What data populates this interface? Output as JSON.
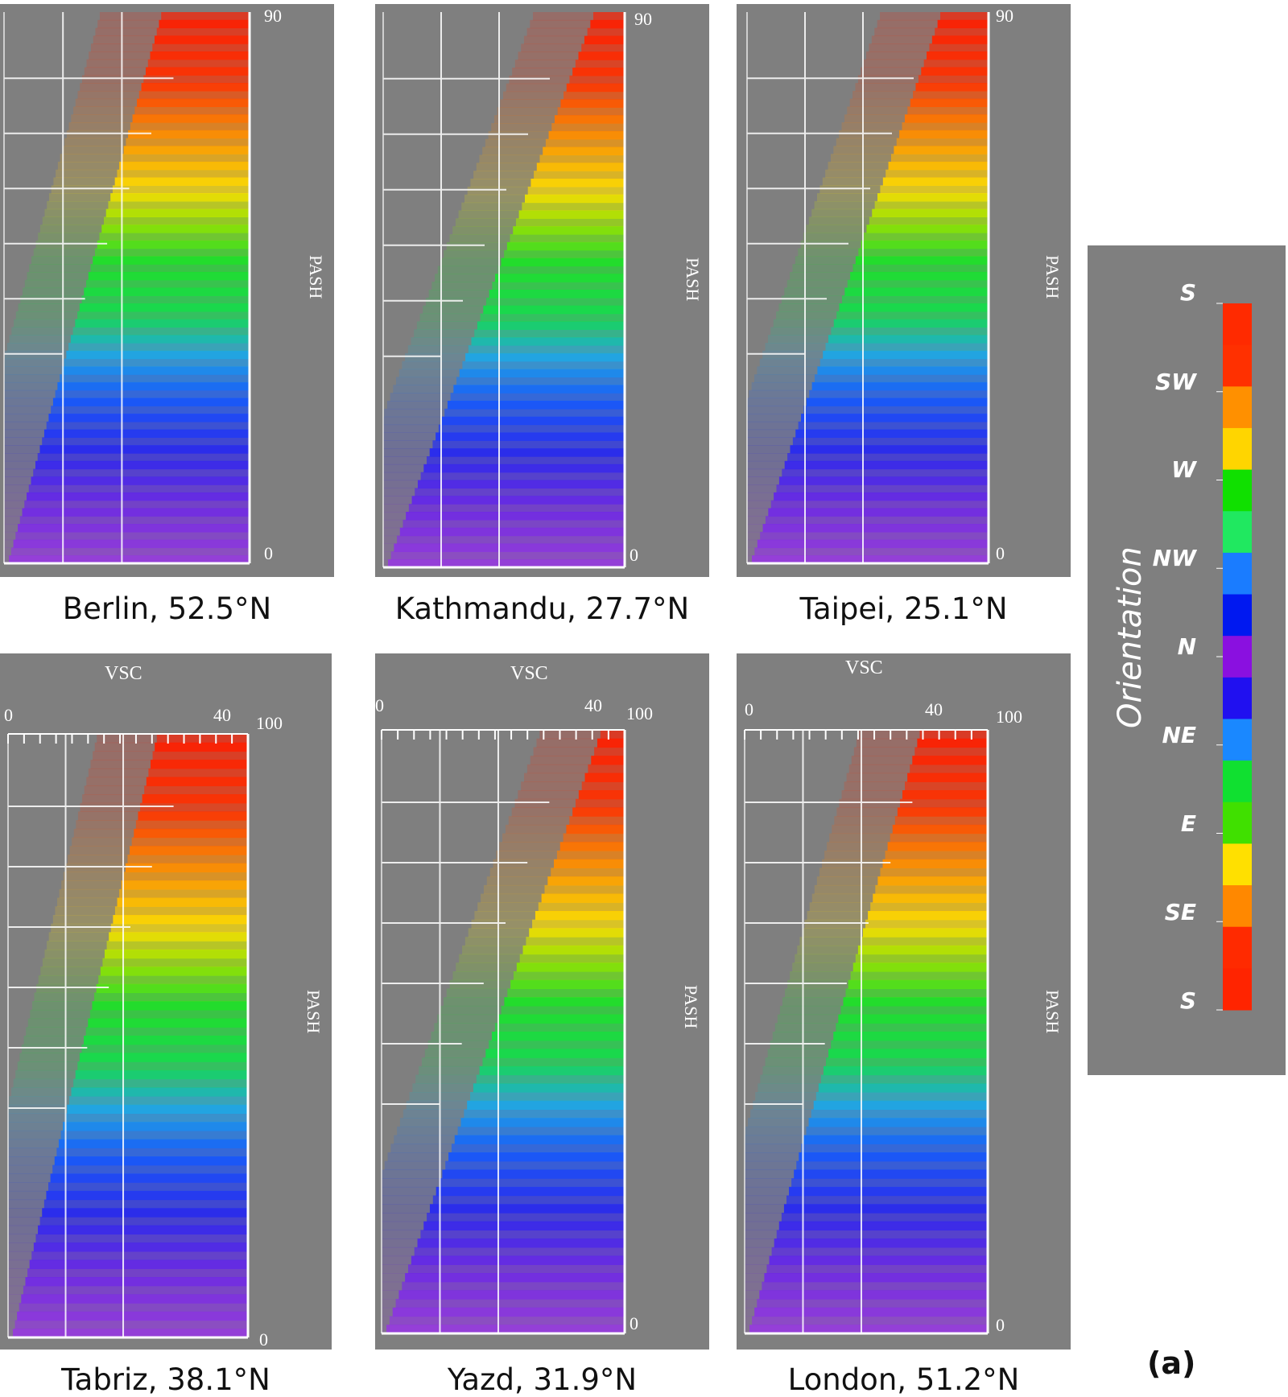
{
  "figure_label": "(a)",
  "legend": {
    "title": "Orientation",
    "labels": [
      "S",
      "SW",
      "W",
      "NW",
      "N",
      "NE",
      "E",
      "SE",
      "S"
    ],
    "stops": [
      "#ff2a00",
      "#ff3000",
      "#ff9000",
      "#ffd500",
      "#10e000",
      "#20e860",
      "#1a7cff",
      "#0018f0",
      "#8a10e0",
      "#2010f0",
      "#1a88ff",
      "#10e030",
      "#40e000",
      "#ffe000",
      "#ff8800",
      "#ff2a00",
      "#ff2400"
    ]
  },
  "chart_data": [
    {
      "type": "scatter",
      "title": "Berlin, 52.5°N",
      "xlabel": "",
      "ylabel": "PASH",
      "ylim": [
        0,
        90
      ],
      "ytick_labels": [
        "90",
        "0"
      ],
      "xtick_labels": [],
      "description": "Density of positions by VSC (x) and PASH (y), colored by orientation"
    },
    {
      "type": "scatter",
      "title": "Kathmandu, 27.7°N",
      "xlabel": "",
      "ylabel": "PASH",
      "ylim": [
        0,
        90
      ],
      "ytick_labels": [
        "90",
        "0"
      ],
      "xtick_labels": []
    },
    {
      "type": "scatter",
      "title": "Taipei, 25.1°N",
      "xlabel": "",
      "ylabel": "PASH",
      "ylim": [
        0,
        90
      ],
      "ytick_labels": [
        "90",
        "0"
      ],
      "xtick_labels": []
    },
    {
      "type": "scatter",
      "title": "Tabriz, 38.1°N",
      "xlabel": "VSC",
      "ylabel": "PASH",
      "ylim": [
        0,
        100
      ],
      "ytick_labels": [
        "100",
        "0"
      ],
      "xtick_labels": [
        "0",
        "40"
      ]
    },
    {
      "type": "scatter",
      "title": "Yazd, 31.9°N",
      "xlabel": "VSC",
      "ylabel": "PASH",
      "ylim": [
        0,
        100
      ],
      "ytick_labels": [
        "100",
        "0"
      ],
      "xtick_labels": [
        "0",
        "40"
      ]
    },
    {
      "type": "scatter",
      "title": "London, 51.2°N",
      "xlabel": "VSC",
      "ylabel": "PASH",
      "ylim": [
        0,
        100
      ],
      "ytick_labels": [
        "100",
        "0"
      ],
      "xtick_labels": [
        "0",
        "40"
      ]
    }
  ]
}
